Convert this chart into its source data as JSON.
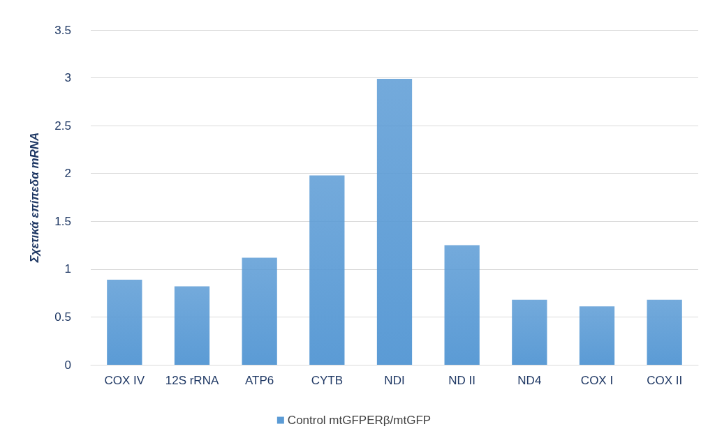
{
  "chart_data": {
    "type": "bar",
    "ylabel": "Σχετικά επίπεδα mRNA",
    "categories": [
      "COX IV",
      "12S rRNA",
      "ATP6",
      "CYTB",
      "NDI",
      "ND II",
      "ND4",
      "COX I",
      "COX II"
    ],
    "series": [
      {
        "name": "Control mtGFPERβ/mtGFP",
        "color": "#5b9bd5",
        "values": [
          0.89,
          0.82,
          1.12,
          1.98,
          2.99,
          1.25,
          0.68,
          0.61,
          0.68
        ]
      }
    ],
    "ylim": [
      0,
      3.5
    ],
    "yticks": [
      0,
      0.5,
      1,
      1.5,
      2,
      2.5,
      3,
      3.5
    ],
    "grid": "y",
    "legend": "bottom"
  }
}
